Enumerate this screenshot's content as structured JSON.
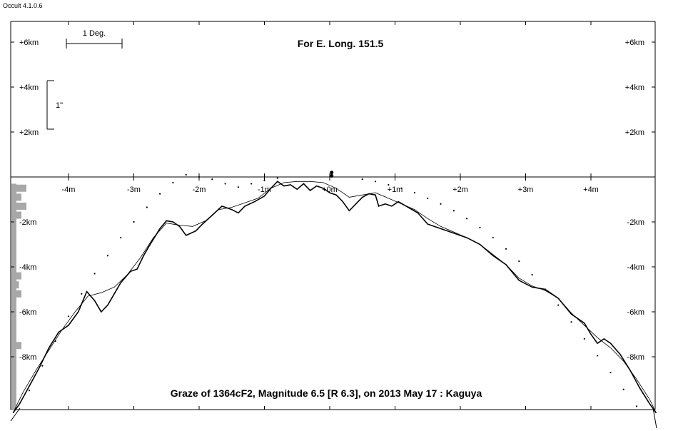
{
  "app": {
    "version_label": "Occult 4.1.0.6"
  },
  "chart_data": {
    "type": "line",
    "title": "For E. Long. 151.5",
    "subtitle": "Graze of  1364cF2,  Magnitude 6.5 [R 6.3],  on 2013 May 17  :  Kaguya",
    "scale_bar_horizontal_label": "1 Deg.",
    "scale_bar_vertical_label": "1\"",
    "x_unit": "m",
    "y_unit": "km",
    "xlim": [
      -5.0,
      5.0
    ],
    "ylim": [
      -10.5,
      7.0
    ],
    "x_ticks": [
      {
        "value": -4,
        "label": "-4m"
      },
      {
        "value": -3,
        "label": "-3m"
      },
      {
        "value": -2,
        "label": "-2m"
      },
      {
        "value": -1,
        "label": "-1m"
      },
      {
        "value": 0,
        "label": "+0m"
      },
      {
        "value": 1,
        "label": "+1m"
      },
      {
        "value": 2,
        "label": "+2m"
      },
      {
        "value": 3,
        "label": "+3m"
      },
      {
        "value": 4,
        "label": "+4m"
      }
    ],
    "y_ticks": [
      {
        "value": 6,
        "label": "+6km"
      },
      {
        "value": 4,
        "label": "+4km"
      },
      {
        "value": 2,
        "label": "+2km"
      },
      {
        "value": -2,
        "label": "-2km"
      },
      {
        "value": -4,
        "label": "-4km"
      },
      {
        "value": -6,
        "label": "-6km"
      },
      {
        "value": -8,
        "label": "-8km"
      }
    ],
    "series": [
      {
        "style": "jagged",
        "points": [
          [
            -4.85,
            -10.5
          ],
          [
            -4.75,
            -10.1
          ],
          [
            -4.6,
            -9.3
          ],
          [
            -4.45,
            -8.5
          ],
          [
            -4.3,
            -7.6
          ],
          [
            -4.15,
            -6.9
          ],
          [
            -4.0,
            -6.6
          ],
          [
            -3.85,
            -6.0
          ],
          [
            -3.72,
            -5.1
          ],
          [
            -3.6,
            -5.5
          ],
          [
            -3.5,
            -6.0
          ],
          [
            -3.4,
            -5.7
          ],
          [
            -3.3,
            -5.2
          ],
          [
            -3.2,
            -4.7
          ],
          [
            -3.05,
            -4.2
          ],
          [
            -2.95,
            -4.1
          ],
          [
            -2.85,
            -3.5
          ],
          [
            -2.75,
            -3.0
          ],
          [
            -2.6,
            -2.3
          ],
          [
            -2.5,
            -1.95
          ],
          [
            -2.4,
            -2.0
          ],
          [
            -2.3,
            -2.2
          ],
          [
            -2.2,
            -2.6
          ],
          [
            -2.05,
            -2.4
          ],
          [
            -1.95,
            -2.1
          ],
          [
            -1.8,
            -1.7
          ],
          [
            -1.65,
            -1.3
          ],
          [
            -1.5,
            -1.45
          ],
          [
            -1.4,
            -1.6
          ],
          [
            -1.3,
            -1.3
          ],
          [
            -1.15,
            -1.1
          ],
          [
            -1.0,
            -0.85
          ],
          [
            -0.9,
            -0.5
          ],
          [
            -0.8,
            -0.2
          ],
          [
            -0.7,
            -0.4
          ],
          [
            -0.6,
            -0.35
          ],
          [
            -0.5,
            -0.55
          ],
          [
            -0.4,
            -0.3
          ],
          [
            -0.3,
            -0.6
          ],
          [
            -0.2,
            -0.4
          ],
          [
            -0.1,
            -0.5
          ],
          [
            0.0,
            -0.7
          ],
          [
            0.1,
            -0.8
          ],
          [
            0.2,
            -1.1
          ],
          [
            0.3,
            -1.5
          ],
          [
            0.4,
            -1.2
          ],
          [
            0.5,
            -0.9
          ],
          [
            0.6,
            -0.75
          ],
          [
            0.7,
            -0.8
          ],
          [
            0.75,
            -1.3
          ],
          [
            0.85,
            -1.2
          ],
          [
            0.95,
            -1.3
          ],
          [
            1.05,
            -1.1
          ],
          [
            1.2,
            -1.35
          ],
          [
            1.35,
            -1.6
          ],
          [
            1.5,
            -2.1
          ],
          [
            1.7,
            -2.3
          ],
          [
            1.9,
            -2.5
          ],
          [
            2.1,
            -2.7
          ],
          [
            2.3,
            -3.0
          ],
          [
            2.5,
            -3.5
          ],
          [
            2.7,
            -3.9
          ],
          [
            2.9,
            -4.6
          ],
          [
            3.1,
            -4.9
          ],
          [
            3.3,
            -5.0
          ],
          [
            3.5,
            -5.4
          ],
          [
            3.7,
            -6.1
          ],
          [
            3.9,
            -6.5
          ],
          [
            4.0,
            -7.0
          ],
          [
            4.1,
            -7.4
          ],
          [
            4.2,
            -7.2
          ],
          [
            4.3,
            -7.4
          ],
          [
            4.45,
            -7.9
          ],
          [
            4.6,
            -8.6
          ],
          [
            4.75,
            -9.4
          ],
          [
            4.9,
            -10.1
          ],
          [
            5.0,
            -10.5
          ]
        ]
      },
      {
        "style": "smooth",
        "points": [
          [
            -4.85,
            -10.5
          ],
          [
            -4.7,
            -9.6
          ],
          [
            -4.5,
            -8.6
          ],
          [
            -4.3,
            -7.7
          ],
          [
            -4.1,
            -6.8
          ],
          [
            -3.9,
            -6.0
          ],
          [
            -3.7,
            -5.3
          ],
          [
            -3.5,
            -5.15
          ],
          [
            -3.3,
            -4.9
          ],
          [
            -3.1,
            -4.35
          ],
          [
            -2.9,
            -3.6
          ],
          [
            -2.7,
            -2.7
          ],
          [
            -2.5,
            -2.05
          ],
          [
            -2.3,
            -2.15
          ],
          [
            -2.1,
            -2.2
          ],
          [
            -1.9,
            -1.95
          ],
          [
            -1.7,
            -1.45
          ],
          [
            -1.5,
            -1.35
          ],
          [
            -1.3,
            -1.15
          ],
          [
            -1.1,
            -0.95
          ],
          [
            -0.9,
            -0.5
          ],
          [
            -0.7,
            -0.25
          ],
          [
            -0.5,
            -0.2
          ],
          [
            -0.3,
            -0.2
          ],
          [
            -0.1,
            -0.25
          ],
          [
            0.1,
            -0.5
          ],
          [
            0.3,
            -0.9
          ],
          [
            0.5,
            -0.8
          ],
          [
            0.7,
            -0.7
          ],
          [
            0.9,
            -0.95
          ],
          [
            1.1,
            -1.2
          ],
          [
            1.3,
            -1.45
          ],
          [
            1.5,
            -1.85
          ],
          [
            1.7,
            -2.2
          ],
          [
            1.9,
            -2.45
          ],
          [
            2.1,
            -2.7
          ],
          [
            2.3,
            -3.0
          ],
          [
            2.5,
            -3.45
          ],
          [
            2.7,
            -3.9
          ],
          [
            2.9,
            -4.5
          ],
          [
            3.1,
            -4.85
          ],
          [
            3.3,
            -5.05
          ],
          [
            3.5,
            -5.4
          ],
          [
            3.7,
            -6.05
          ],
          [
            3.9,
            -6.6
          ],
          [
            4.1,
            -7.15
          ],
          [
            4.3,
            -7.6
          ],
          [
            4.5,
            -8.2
          ],
          [
            4.7,
            -9.0
          ],
          [
            4.9,
            -9.9
          ],
          [
            5.0,
            -10.5
          ]
        ]
      },
      {
        "style": "dotted",
        "points": [
          [
            -4.6,
            -9.5
          ],
          [
            -4.4,
            -8.4
          ],
          [
            -4.2,
            -7.3
          ],
          [
            -4.0,
            -6.2
          ],
          [
            -3.8,
            -5.2
          ],
          [
            -3.6,
            -4.3
          ],
          [
            -3.4,
            -3.5
          ],
          [
            -3.2,
            -2.7
          ],
          [
            -3.0,
            -2.0
          ],
          [
            -2.8,
            -1.35
          ],
          [
            -2.6,
            -0.75
          ],
          [
            -2.4,
            -0.25
          ],
          [
            -2.2,
            0.1
          ],
          [
            -2.0,
            0.0
          ],
          [
            -1.8,
            -0.1
          ],
          [
            -1.6,
            -0.3
          ],
          [
            -1.4,
            -0.45
          ],
          [
            -1.2,
            -0.3
          ],
          [
            -1.0,
            -0.15
          ],
          [
            -0.8,
            -0.05
          ],
          [
            0.5,
            -0.1
          ],
          [
            0.7,
            -0.2
          ],
          [
            0.9,
            -0.35
          ],
          [
            1.1,
            -0.5
          ],
          [
            1.3,
            -0.7
          ],
          [
            1.5,
            -0.95
          ],
          [
            1.7,
            -1.2
          ],
          [
            1.9,
            -1.5
          ],
          [
            2.1,
            -1.85
          ],
          [
            2.3,
            -2.25
          ],
          [
            2.5,
            -2.7
          ],
          [
            2.7,
            -3.2
          ],
          [
            2.9,
            -3.75
          ],
          [
            3.1,
            -4.35
          ],
          [
            3.3,
            -5.0
          ],
          [
            3.5,
            -5.7
          ],
          [
            3.7,
            -6.45
          ],
          [
            3.9,
            -7.2
          ],
          [
            4.1,
            -7.95
          ],
          [
            4.3,
            -8.7
          ],
          [
            4.5,
            -9.45
          ],
          [
            4.7,
            -10.2
          ]
        ]
      }
    ],
    "limb_cusp_marks": [
      [
        0.03,
        0.2
      ],
      [
        0.03,
        0.05
      ]
    ],
    "histogram": [
      {
        "y": -0.5,
        "value": 3
      },
      {
        "y": -0.9,
        "value": 2
      },
      {
        "y": -1.3,
        "value": 3
      },
      {
        "y": -1.7,
        "value": 2
      },
      {
        "y": -2.3,
        "value": 1
      },
      {
        "y": -3.0,
        "value": 1
      },
      {
        "y": -4.4,
        "value": 2
      },
      {
        "y": -4.8,
        "value": 1.5
      },
      {
        "y": -5.2,
        "value": 2
      },
      {
        "y": -5.7,
        "value": 1
      },
      {
        "y": -7.5,
        "value": 2
      },
      {
        "y": -8.5,
        "value": 1
      },
      {
        "y": -9.6,
        "value": 1
      },
      {
        "y": -10.2,
        "value": 1
      }
    ]
  }
}
